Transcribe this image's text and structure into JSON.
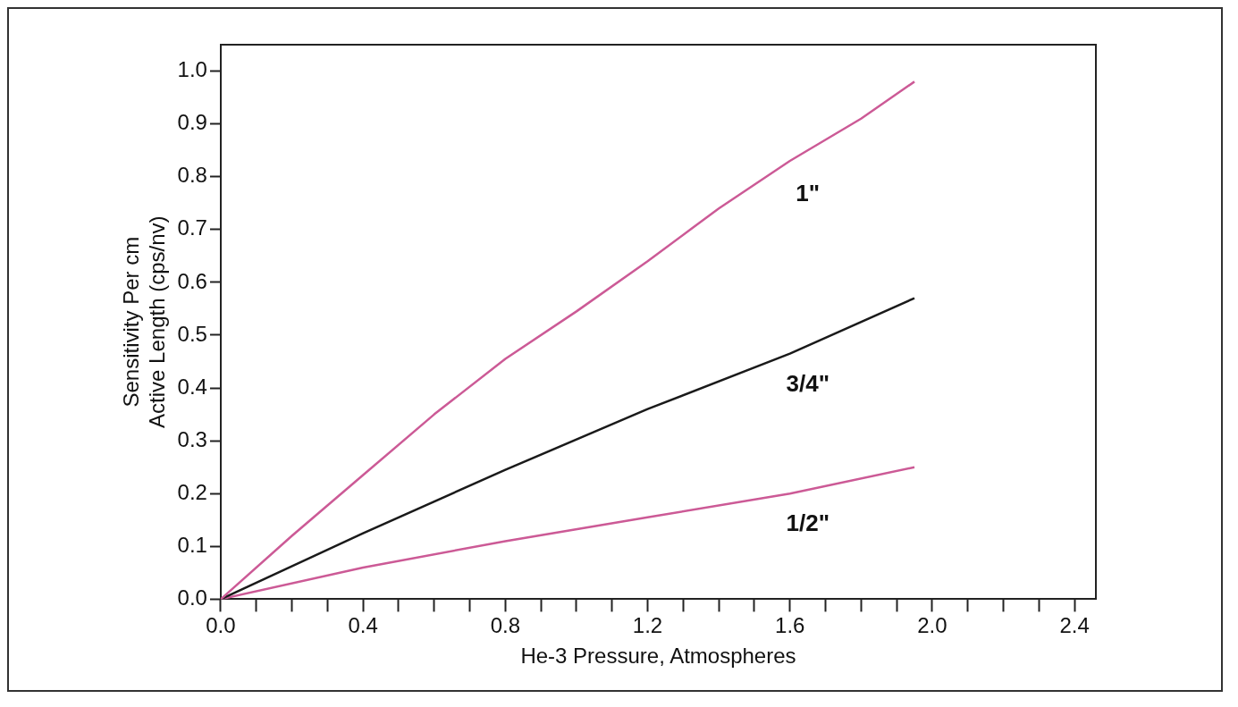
{
  "chart_data": {
    "type": "line",
    "xlabel": "He-3 Pressure, Atmospheres",
    "ylabel": "Sensitivity Per cm\nActive Length (cps/nv)",
    "series": [
      {
        "name": "1\"",
        "color": "#cc5a96",
        "x": [
          0,
          0.2,
          0.4,
          0.6,
          0.8,
          1.0,
          1.2,
          1.4,
          1.6,
          1.8,
          1.95
        ],
        "values": [
          0,
          0.12,
          0.235,
          0.35,
          0.455,
          0.545,
          0.64,
          0.74,
          0.83,
          0.91,
          0.98
        ]
      },
      {
        "name": "3/4\"",
        "color": "#1a1a1a",
        "x": [
          0,
          0.4,
          0.8,
          1.2,
          1.6,
          1.95
        ],
        "values": [
          0,
          0.125,
          0.245,
          0.36,
          0.465,
          0.57
        ]
      },
      {
        "name": "1/2\"",
        "color": "#cc5a96",
        "x": [
          0,
          0.4,
          0.8,
          1.2,
          1.6,
          1.95
        ],
        "values": [
          0,
          0.06,
          0.11,
          0.155,
          0.2,
          0.25
        ]
      }
    ],
    "xlim": [
      0,
      2.46
    ],
    "ylim": [
      0,
      1.05
    ],
    "xticks": [
      {
        "value": 0,
        "label": "0.0"
      },
      {
        "value": 0.1,
        "label": null
      },
      {
        "value": 0.2,
        "label": null
      },
      {
        "value": 0.3,
        "label": null
      },
      0.4,
      {
        "value": 0.5,
        "label": null
      },
      {
        "value": 0.6,
        "label": null
      },
      {
        "value": 0.7,
        "label": null
      },
      0.8,
      {
        "value": 0.9,
        "label": null
      },
      {
        "value": 1.0,
        "label": null
      },
      {
        "value": 1.1,
        "label": null
      },
      1.2,
      {
        "value": 1.3,
        "label": null
      },
      {
        "value": 1.4,
        "label": null
      },
      {
        "value": 1.5,
        "label": null
      },
      1.6,
      {
        "value": 1.7,
        "label": null
      },
      {
        "value": 1.8,
        "label": null
      },
      {
        "value": 1.9,
        "label": null
      },
      {
        "value": 2,
        "label": "2.0"
      },
      {
        "value": 2.1,
        "label": null
      },
      {
        "value": 2.2,
        "label": null
      },
      {
        "value": 2.3,
        "label": null
      },
      2.4
    ],
    "yticks": [
      {
        "value": 0,
        "label": "0.0"
      },
      0.1,
      0.2,
      0.3,
      0.4,
      0.5,
      0.6,
      0.7,
      0.8,
      0.9,
      {
        "value": 1,
        "label": "1.0"
      }
    ],
    "grid": false,
    "legend": false,
    "marker": "none",
    "line_style": "solid"
  }
}
